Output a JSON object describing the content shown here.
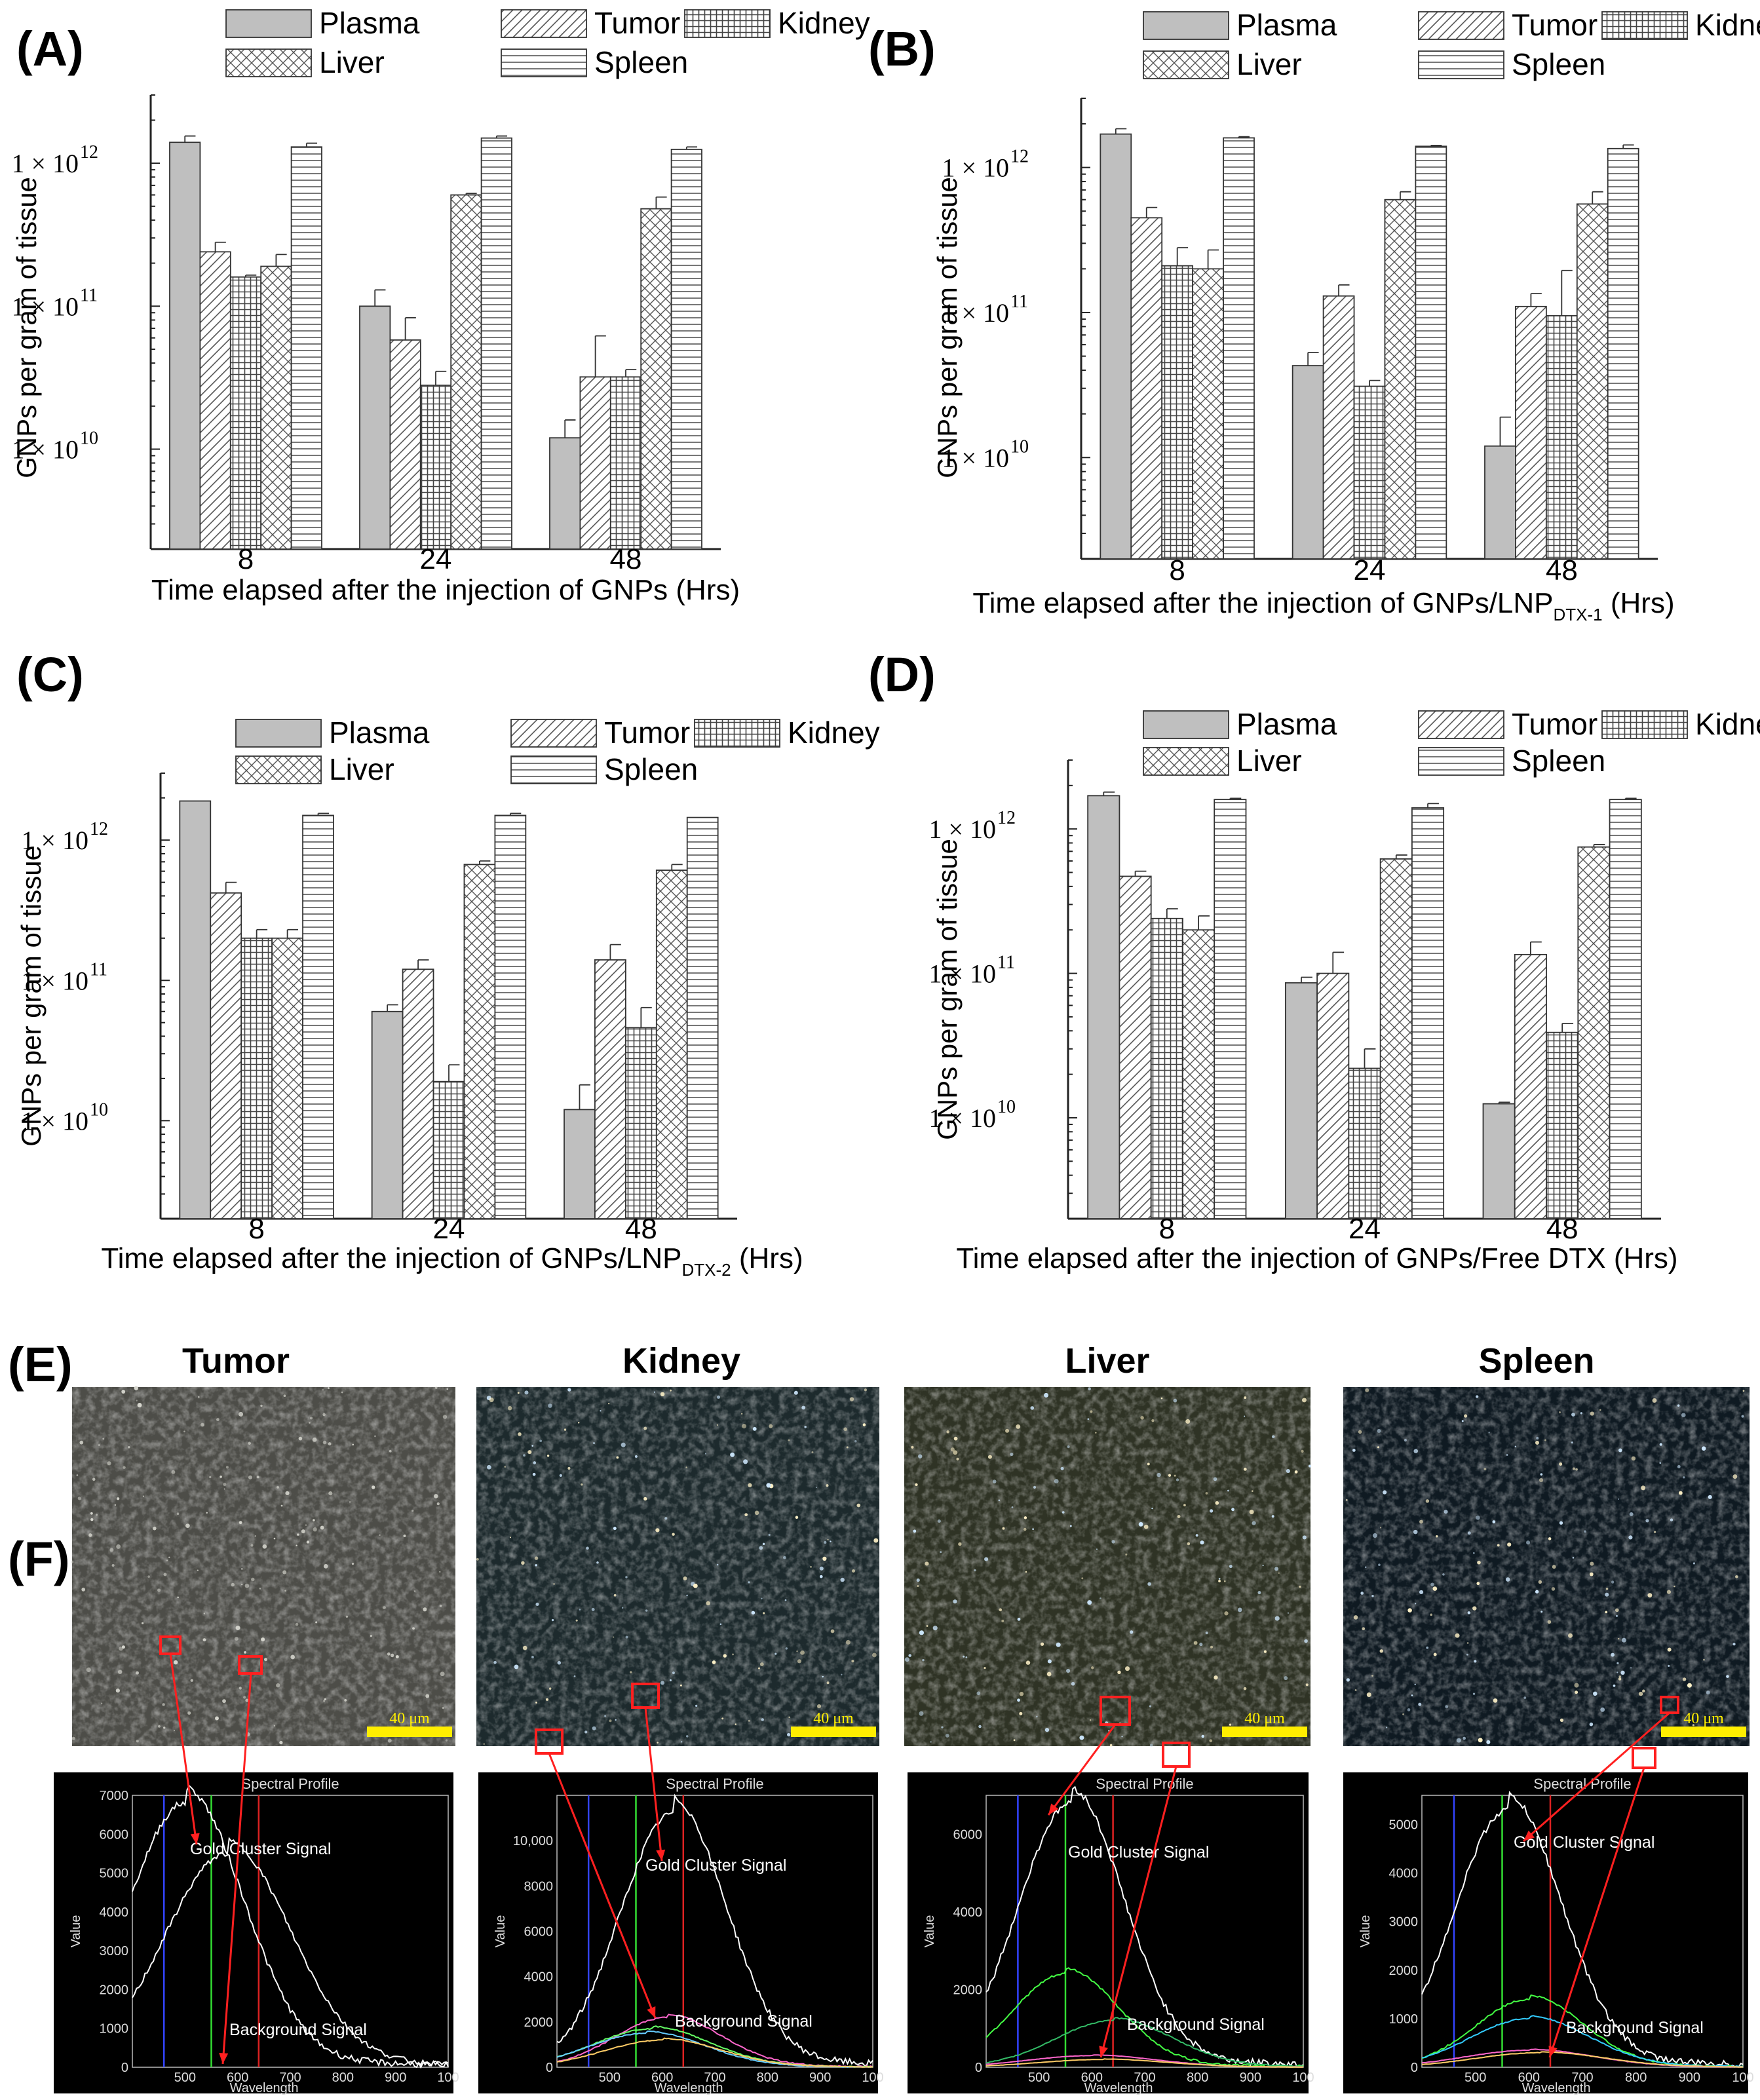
{
  "panels": [
    {
      "id": "A",
      "label": "(A)",
      "xlabel": "Time elapsed after the injection of GNPs (Hrs)",
      "ylabel": "GNPs per gram of tissue"
    },
    {
      "id": "B",
      "label": "(B)",
      "xlabel": "Time elapsed after the injection of GNPs/LNP",
      "xlabel_sub": "DTX-1",
      "xlabel_end": " (Hrs)",
      "ylabel": "GNPs per gram of tissue"
    },
    {
      "id": "C",
      "label": "(C)",
      "xlabel": "Time elapsed after the injection of GNPs/LNP",
      "xlabel_sub": "DTX-2",
      "xlabel_end": " (Hrs)",
      "ylabel": "GNPs per gram of tissue"
    },
    {
      "id": "D",
      "label": "(D)",
      "xlabel": "Time elapsed after the injection of GNPs/Free DTX (Hrs)",
      "ylabel": "GNPs per gram of tissue"
    }
  ],
  "legend": [
    "Plasma",
    "Tumor",
    "Kidney",
    "Liver",
    "Spleen"
  ],
  "tick_labels": [
    "1 × 10",
    "12",
    "1 × 10",
    "11",
    "1 × 10",
    "10"
  ],
  "chart_data": [
    {
      "type": "bar",
      "panel": "A",
      "categories": [
        "8",
        "24",
        "48"
      ],
      "yscale": "log",
      "ylim": [
        2000000000.0,
        3000000000000.0
      ],
      "series": [
        {
          "name": "Plasma",
          "values": [
            1400000000000.0,
            100000000000.0,
            12000000000.0
          ],
          "errors": [
            150000000000.0,
            30000000000.0,
            4000000000.0
          ]
        },
        {
          "name": "Tumor",
          "values": [
            240000000000.0,
            58000000000.0,
            32000000000.0
          ],
          "errors": [
            40000000000.0,
            25000000000.0,
            30000000000.0
          ]
        },
        {
          "name": "Kidney",
          "values": [
            160000000000.0,
            28000000000.0,
            32000000000.0
          ],
          "errors": [
            5000000000.0,
            7000000000.0,
            4000000000.0
          ]
        },
        {
          "name": "Liver",
          "values": [
            190000000000.0,
            600000000000.0,
            480000000000.0
          ],
          "errors": [
            40000000000.0,
            15000000000.0,
            100000000000.0
          ]
        },
        {
          "name": "Spleen",
          "values": [
            1300000000000.0,
            1500000000000.0,
            1250000000000.0
          ],
          "errors": [
            80000000000.0,
            50000000000.0,
            50000000000.0
          ]
        }
      ]
    },
    {
      "type": "bar",
      "panel": "B",
      "categories": [
        "8",
        "24",
        "48"
      ],
      "yscale": "log",
      "ylim": [
        2000000000.0,
        3000000000000.0
      ],
      "series": [
        {
          "name": "Plasma",
          "values": [
            1700000000000.0,
            43000000000.0,
            12000000000.0
          ],
          "errors": [
            150000000000.0,
            10000000000.0,
            7000000000.0
          ]
        },
        {
          "name": "Tumor",
          "values": [
            450000000000.0,
            130000000000.0,
            110000000000.0
          ],
          "errors": [
            80000000000.0,
            25000000000.0,
            25000000000.0
          ]
        },
        {
          "name": "Kidney",
          "values": [
            210000000000.0,
            31000000000.0,
            95000000000.0
          ],
          "errors": [
            70000000000.0,
            3000000000.0,
            100000000000.0
          ]
        },
        {
          "name": "Liver",
          "values": [
            200000000000.0,
            600000000000.0,
            560000000000.0
          ],
          "errors": [
            70000000000.0,
            80000000000.0,
            120000000000.0
          ]
        },
        {
          "name": "Spleen",
          "values": [
            1600000000000.0,
            1400000000000.0,
            1350000000000.0
          ],
          "errors": [
            30000000000.0,
            20000000000.0,
            80000000000.0
          ]
        }
      ]
    },
    {
      "type": "bar",
      "panel": "C",
      "categories": [
        "8",
        "24",
        "48"
      ],
      "yscale": "log",
      "ylim": [
        2000000000.0,
        3000000000000.0
      ],
      "series": [
        {
          "name": "Plasma",
          "values": [
            1900000000000.0,
            60000000000.0,
            12000000000.0
          ],
          "errors": [
            0,
            7000000000.0,
            6000000000.0
          ]
        },
        {
          "name": "Tumor",
          "values": [
            420000000000.0,
            120000000000.0,
            140000000000.0
          ],
          "errors": [
            80000000000.0,
            20000000000.0,
            40000000000.0
          ]
        },
        {
          "name": "Kidney",
          "values": [
            200000000000.0,
            19000000000.0,
            46000000000.0
          ],
          "errors": [
            30000000000.0,
            6000000000.0,
            18000000000.0
          ]
        },
        {
          "name": "Liver",
          "values": [
            200000000000.0,
            670000000000.0,
            610000000000.0
          ],
          "errors": [
            30000000000.0,
            40000000000.0,
            60000000000.0
          ]
        },
        {
          "name": "Spleen",
          "values": [
            1500000000000.0,
            1500000000000.0,
            1450000000000.0
          ],
          "errors": [
            50000000000.0,
            50000000000.0,
            0
          ]
        }
      ]
    },
    {
      "type": "bar",
      "panel": "D",
      "categories": [
        "8",
        "24",
        "48"
      ],
      "yscale": "log",
      "ylim": [
        2000000000.0,
        3000000000000.0
      ],
      "series": [
        {
          "name": "Plasma",
          "values": [
            1700000000000.0,
            86000000000.0,
            12500000000.0
          ],
          "errors": [
            100000000000.0,
            8000000000.0,
            300000000.0
          ]
        },
        {
          "name": "Tumor",
          "values": [
            470000000000.0,
            100000000000.0,
            135000000000.0
          ],
          "errors": [
            40000000000.0,
            40000000000.0,
            30000000000.0
          ]
        },
        {
          "name": "Kidney",
          "values": [
            240000000000.0,
            22000000000.0,
            39000000000.0
          ],
          "errors": [
            40000000000.0,
            8000000000.0,
            6000000000.0
          ]
        },
        {
          "name": "Liver",
          "values": [
            200000000000.0,
            620000000000.0,
            750000000000.0
          ],
          "errors": [
            50000000000.0,
            40000000000.0,
            30000000000.0
          ]
        },
        {
          "name": "Spleen",
          "values": [
            1600000000000.0,
            1400000000000.0,
            1600000000000.0
          ],
          "errors": [
            30000000000.0,
            100000000000.0,
            30000000000.0
          ]
        }
      ]
    }
  ],
  "panelE": {
    "label": "(E)",
    "organs": [
      "Tumor",
      "Kidney",
      "Liver",
      "Spleen"
    ],
    "scalebar": "40 μm",
    "image_colors": [
      "#4d4d48",
      "#1d2a2d",
      "#2f3325",
      "#0f1a22"
    ]
  },
  "panelF": {
    "label": "(F)",
    "title": "Spectral Profile",
    "gold_label": "Gold Cluster Signal",
    "bg_label": "Background Signal",
    "xlabel": "Wavelength",
    "ylabel": "Value",
    "spectra": [
      {
        "organ": "Tumor",
        "yticks": [
          "0",
          "1000",
          "2000",
          "3000",
          "4000",
          "5000",
          "6000",
          "7000"
        ],
        "ymax": 7000,
        "xticks": [
          "500",
          "600",
          "700",
          "800",
          "900",
          "100"
        ],
        "curves": [
          {
            "color": "#ffffff",
            "peak": 6800,
            "center": 500,
            "width": 110
          },
          {
            "color": "#ffffff",
            "peak": 5500,
            "center": 580,
            "width": 120
          }
        ]
      },
      {
        "organ": "Kidney",
        "yticks": [
          "0",
          "2000",
          "4000",
          "6000",
          "8000",
          "10,000"
        ],
        "ymax": 12000,
        "xticks": [
          "500",
          "600",
          "700",
          "800",
          "900",
          "100"
        ],
        "curves": [
          {
            "color": "#ffffff",
            "peak": 11200,
            "center": 620,
            "width": 100
          },
          {
            "color": "#ff66cc",
            "peak": 2200,
            "center": 610,
            "width": 100
          },
          {
            "color": "#66ff66",
            "peak": 1700,
            "center": 580,
            "width": 110
          },
          {
            "color": "#66ccff",
            "peak": 1500,
            "center": 570,
            "width": 110
          },
          {
            "color": "#ffcc66",
            "peak": 1200,
            "center": 600,
            "width": 110
          }
        ]
      },
      {
        "organ": "Liver",
        "yticks": [
          "0",
          "2000",
          "4000",
          "6000"
        ],
        "ymax": 7000,
        "xticks": [
          "500",
          "600",
          "700",
          "800",
          "900",
          "100"
        ],
        "curves": [
          {
            "color": "#ffffff",
            "peak": 6800,
            "center": 560,
            "width": 100
          },
          {
            "color": "#44ff44",
            "peak": 2400,
            "center": 550,
            "width": 100
          },
          {
            "color": "#33bb66",
            "peak": 1200,
            "center": 640,
            "width": 110
          },
          {
            "color": "#ff66cc",
            "peak": 300,
            "center": 600,
            "width": 120
          },
          {
            "color": "#ffcc66",
            "peak": 200,
            "center": 620,
            "width": 120
          }
        ]
      },
      {
        "organ": "Spleen",
        "yticks": [
          "0",
          "1000",
          "2000",
          "3000",
          "4000",
          "5000"
        ],
        "ymax": 5600,
        "xticks": [
          "500",
          "600",
          "700",
          "800",
          "900",
          "100"
        ],
        "curves": [
          {
            "color": "#ffffff",
            "peak": 5300,
            "center": 560,
            "width": 100
          },
          {
            "color": "#44ff44",
            "peak": 1400,
            "center": 600,
            "width": 100
          },
          {
            "color": "#33ccff",
            "peak": 1000,
            "center": 600,
            "width": 110
          },
          {
            "color": "#ff66cc",
            "peak": 350,
            "center": 600,
            "width": 120
          },
          {
            "color": "#ffcc66",
            "peak": 300,
            "center": 620,
            "width": 120
          }
        ]
      }
    ]
  }
}
